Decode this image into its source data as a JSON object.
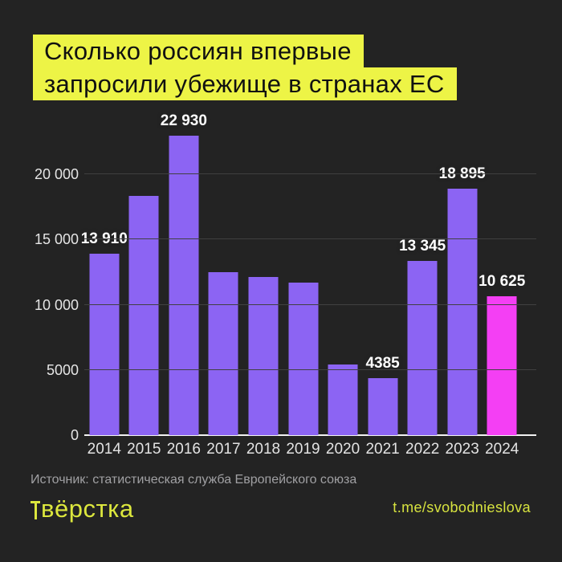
{
  "title": {
    "line1": "Сколько россиян впервые",
    "line2": "запросили убежище в странах ЕС"
  },
  "chart_data": {
    "type": "bar",
    "title": "Сколько россиян впервые запросили убежище в странах ЕС",
    "categories": [
      "2014",
      "2015",
      "2016",
      "2017",
      "2018",
      "2019",
      "2020",
      "2021",
      "2022",
      "2023",
      "2024"
    ],
    "values": [
      13910,
      18340,
      22930,
      12500,
      12150,
      11695,
      5440,
      4385,
      13345,
      18895,
      10625
    ],
    "value_labels": [
      "13 910",
      "",
      "22 930",
      "",
      "",
      "",
      "",
      "4385",
      "13 345",
      "18 895",
      "10 625"
    ],
    "highlight_index": 10,
    "xlabel": "",
    "ylabel": "",
    "ylim": [
      0,
      23500
    ],
    "y_ticks": [
      {
        "value": 20000,
        "label": "20 000"
      },
      {
        "value": 15000,
        "label": "15 000"
      },
      {
        "value": 10000,
        "label": "10 000"
      },
      {
        "value": 5000,
        "label": "5000"
      },
      {
        "value": 0,
        "label": "0"
      }
    ],
    "grid": true,
    "legend": false,
    "bar_color": "#8c64f3",
    "highlight_color": "#f43ff4"
  },
  "source": "Источник: статистическая служба Европейского союза",
  "footer": {
    "logo": "вёрстка",
    "link": "t.me/svobodnieslova"
  },
  "colors": {
    "background": "#232323",
    "title_highlight": "#edf446",
    "accent_yellow": "#dce73d",
    "bar_purple": "#8c64f3",
    "bar_magenta": "#f43ff4",
    "axis_line": "#f2f2f2",
    "gridline": "#404040"
  }
}
